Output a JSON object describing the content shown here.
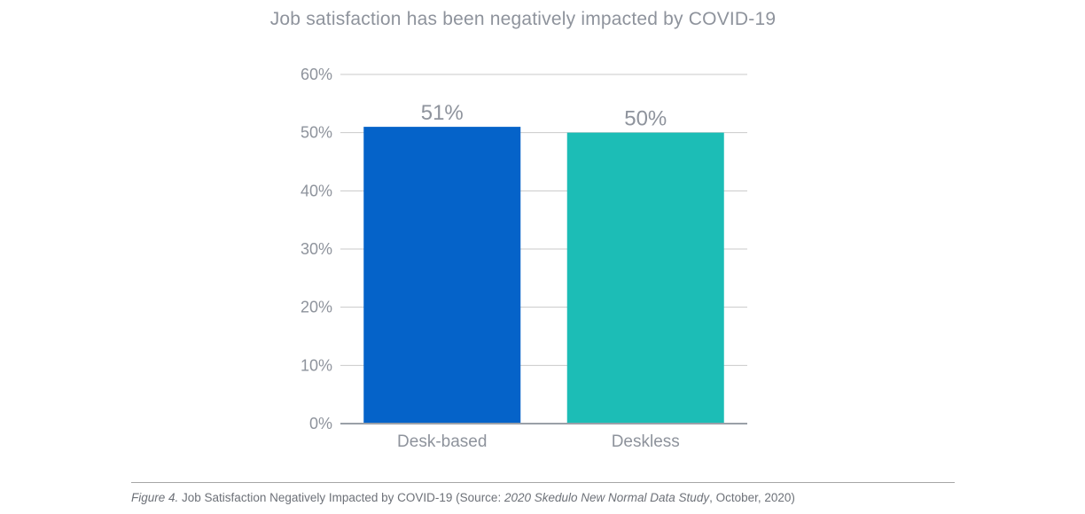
{
  "chart_data": {
    "type": "bar",
    "title": "Job satisfaction has been negatively impacted by COVID-19",
    "categories": [
      "Desk-based",
      "Deskless"
    ],
    "values": [
      51,
      50
    ],
    "value_labels": [
      "51%",
      "50%"
    ],
    "colors": [
      "#0563c9",
      "#1cbdb6"
    ],
    "ylim": [
      0,
      60
    ],
    "yticks": [
      0,
      10,
      20,
      30,
      40,
      50,
      60
    ],
    "ytick_labels": [
      "0%",
      "10%",
      "20%",
      "30%",
      "40%",
      "50%",
      "60%"
    ],
    "grid": true,
    "legend": "none",
    "xlabel": "",
    "ylabel": ""
  },
  "caption": {
    "figure_label": "Figure 4.",
    "text_before": " Job Satisfaction Negatively Impacted by COVID-19 (Source: ",
    "source_title": "2020 Skedulo New Normal Data Study",
    "text_after": ", October, 2020)"
  }
}
